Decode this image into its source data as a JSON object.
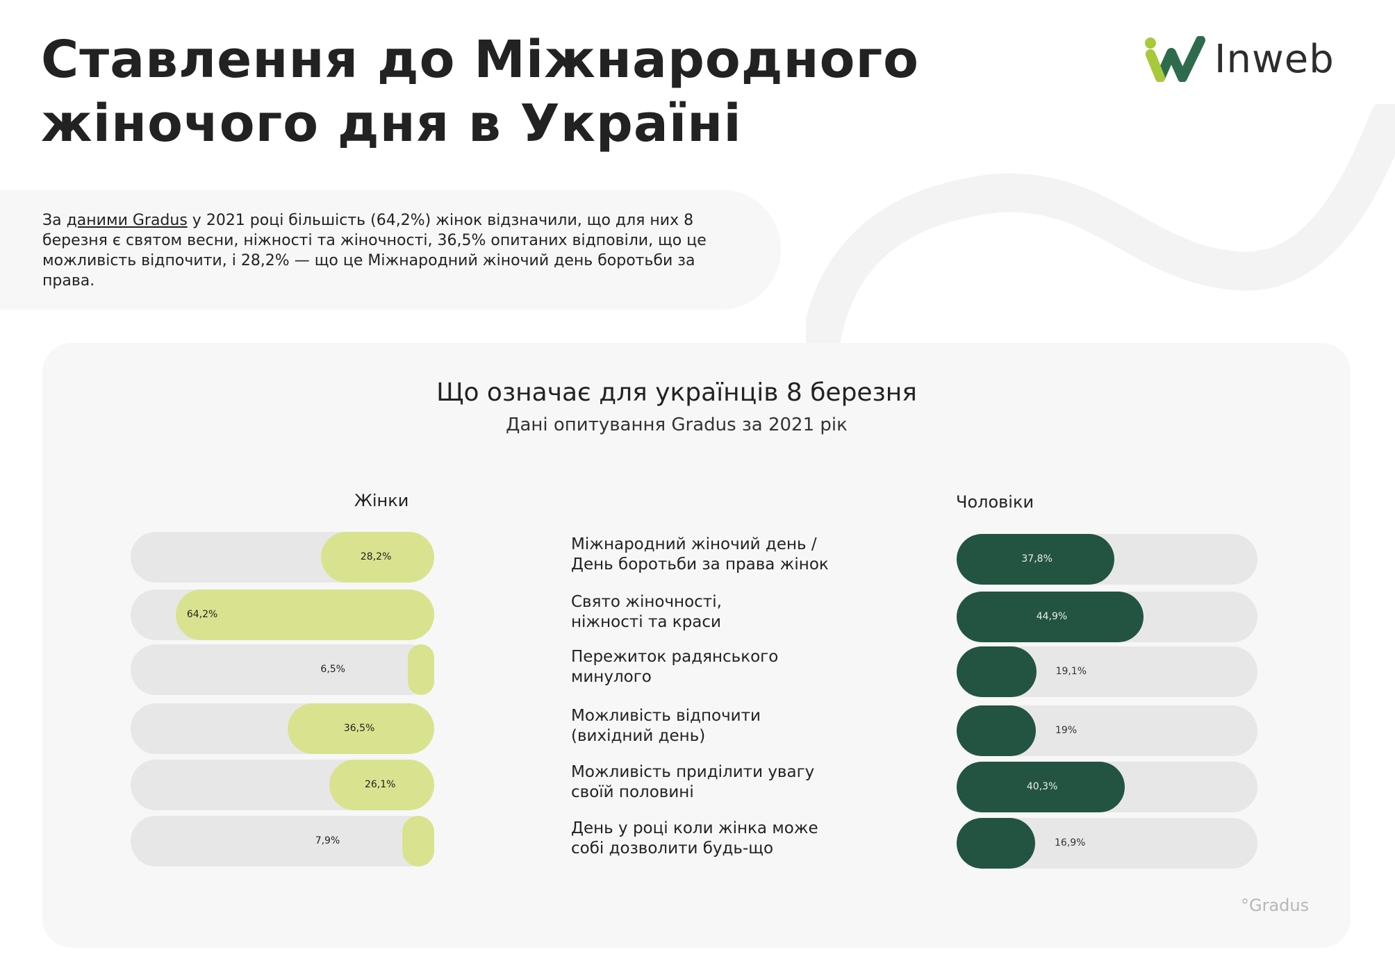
{
  "header": {
    "title_line1": "Ставлення до Міжнародного",
    "title_line2": "жіночого дня в Україні",
    "logo_text": "Inweb"
  },
  "intro": {
    "pre": "За ",
    "link": "даними Gradus",
    "post": " у 2021 році більшість (64,2%) жінок відзначили, що для них 8 березня є святом весни, ніжності та жіночності, 36,5% опитаних відповіли, що це можливість відпочити, і 28,2% — що це Міжнародний жіночий день боротьби за права."
  },
  "colors": {
    "women": "#d9e38f",
    "men": "#235441",
    "track": "#e8e7e8",
    "card": "#f7f7f7"
  },
  "source_logo": "°Gradus",
  "chart_data": {
    "type": "bar",
    "title": "Що означає для українців 8 березня",
    "subtitle": "Дані опитування Gradus за 2021 рік",
    "categories": [
      [
        "Міжнародний жіночий день /",
        "День боротьби за права жінок"
      ],
      [
        "Свято жіночності,",
        "ніжності та краси"
      ],
      [
        "Пережиток радянського",
        "минулого"
      ],
      [
        "Можливість відпочити",
        "(вихідний день)"
      ],
      [
        "Можливість приділити увагу",
        "своїй половині"
      ],
      [
        "День у році коли жінка може",
        "собі дозволити будь-що"
      ]
    ],
    "series": [
      {
        "name": "Жінки",
        "values": [
          28.2,
          64.2,
          6.5,
          36.5,
          26.1,
          7.9
        ],
        "labels": [
          "28,2%",
          "64,2%",
          "6,5%",
          "36,5%",
          "26,1%",
          "7,9%"
        ]
      },
      {
        "name": "Чоловіки",
        "values": [
          37.8,
          44.9,
          19.1,
          19,
          40.3,
          16.9
        ],
        "labels": [
          "37,8%",
          "44,9%",
          "19,1%",
          "19%",
          "40,3%",
          "16,9%"
        ]
      }
    ],
    "unit": "%"
  }
}
